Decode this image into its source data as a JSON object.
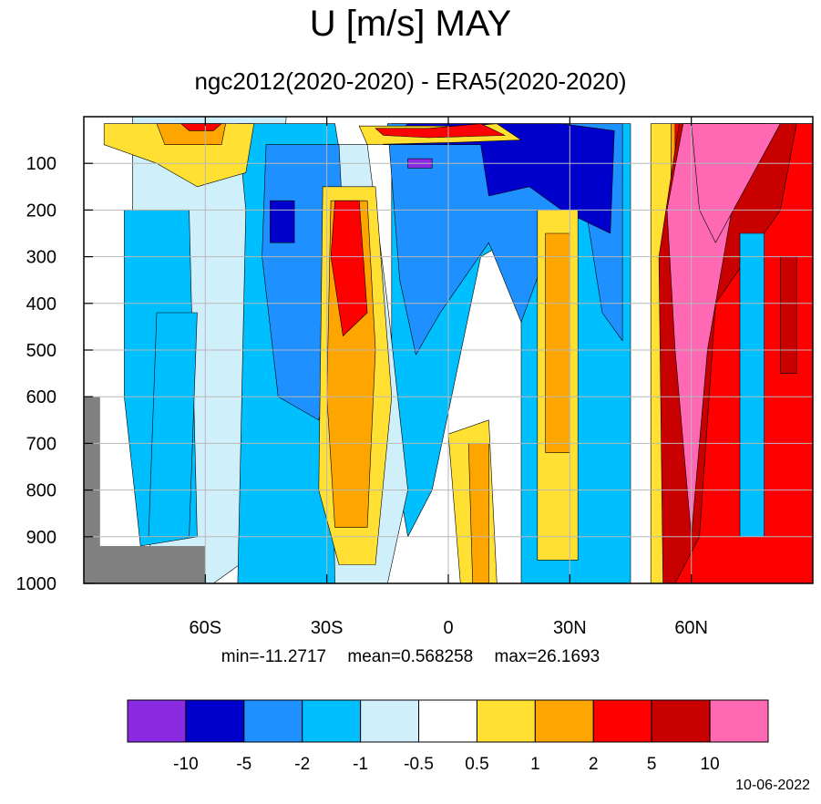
{
  "header": {
    "title": "U [m/s] MAY",
    "subtitle": "ngc2012(2020-2020) - ERA5(2020-2020)"
  },
  "stats": {
    "min": "min=-11.2717",
    "mean": "mean=0.568258",
    "max": "max=26.1693"
  },
  "footer": {
    "date": "10-06-2022"
  },
  "chart_data": {
    "type": "heatmap",
    "title": "U [m/s] MAY",
    "subtitle": "ngc2012(2020-2020) - ERA5(2020-2020)",
    "x_axis": {
      "range": [
        -90,
        90
      ],
      "ticks": [
        -60,
        -30,
        0,
        30,
        60
      ],
      "tick_labels": [
        "60S",
        "30S",
        "0",
        "30N",
        "60N"
      ]
    },
    "y_axis": {
      "range": [
        0,
        1000
      ],
      "inverted": true,
      "ticks": [
        100,
        200,
        300,
        400,
        500,
        600,
        700,
        800,
        900,
        1000
      ],
      "tick_labels": [
        "100",
        "200",
        "300",
        "400",
        "500",
        "600",
        "700",
        "800",
        "900",
        "1000"
      ]
    },
    "grid": true,
    "colorbar": {
      "orientation": "horizontal",
      "levels": [
        -10,
        -5,
        -2,
        -1,
        -0.5,
        0.5,
        1,
        2,
        5,
        10
      ],
      "level_labels": [
        "-10",
        "-5",
        "-2",
        "-1",
        "-0.5",
        "0.5",
        "1",
        "2",
        "5",
        "10"
      ],
      "colors": [
        "#8a2be2",
        "#0000cd",
        "#1e90ff",
        "#00bfff",
        "#cfeffb",
        "#ffffff",
        "#ffe033",
        "#ffa500",
        "#ff0000",
        "#c80000",
        "#ff69b4"
      ]
    },
    "missing_color": "#808080",
    "stats": {
      "min": -11.2717,
      "mean": 0.568258,
      "max": 26.1693
    },
    "regions": [
      {
        "level": -0.5,
        "points": [
          [
            -78,
            0
          ],
          [
            -40,
            0
          ],
          [
            -42,
            200
          ],
          [
            -42,
            900
          ],
          [
            -58,
            1000
          ],
          [
            -72,
            1000
          ],
          [
            -78,
            700
          ]
        ]
      },
      {
        "level": -1,
        "points": [
          [
            -80,
            200
          ],
          [
            -64,
            200
          ],
          [
            -62,
            900
          ],
          [
            -76,
            920
          ],
          [
            -80,
            600
          ]
        ]
      },
      {
        "level": -1,
        "points": [
          [
            -72,
            420
          ],
          [
            -62,
            420
          ],
          [
            -64,
            900
          ],
          [
            -74,
            900
          ]
        ]
      },
      {
        "level": -1,
        "points": [
          [
            -52,
            15
          ],
          [
            -28,
            15
          ],
          [
            -20,
            450
          ],
          [
            -16,
            800
          ],
          [
            -25,
            1000
          ],
          [
            -52,
            1000
          ],
          [
            -50,
            200
          ]
        ]
      },
      {
        "level": -1,
        "points": [
          [
            -14,
            15
          ],
          [
            45,
            15
          ],
          [
            45,
            1000
          ],
          [
            18,
            1000
          ],
          [
            18,
            250
          ],
          [
            8,
            300
          ],
          [
            -4,
            800
          ],
          [
            -10,
            900
          ],
          [
            -14,
            700
          ]
        ]
      },
      {
        "level": -0.5,
        "points": [
          [
            -30,
            60
          ],
          [
            -20,
            60
          ],
          [
            -15,
            400
          ],
          [
            -10,
            800
          ],
          [
            -15,
            1000
          ],
          [
            -28,
            1000
          ]
        ]
      },
      {
        "level": -2,
        "points": [
          [
            -45,
            60
          ],
          [
            -27,
            60
          ],
          [
            -25,
            400
          ],
          [
            -32,
            650
          ],
          [
            -42,
            600
          ],
          [
            -46,
            300
          ]
        ]
      },
      {
        "level": -5,
        "points": [
          [
            -44,
            180
          ],
          [
            -38,
            180
          ],
          [
            -38,
            270
          ],
          [
            -44,
            270
          ]
        ]
      },
      {
        "level": -2,
        "points": [
          [
            -15,
            15
          ],
          [
            43,
            15
          ],
          [
            43,
            480
          ],
          [
            38,
            420
          ],
          [
            34,
            200
          ],
          [
            26,
            250
          ],
          [
            18,
            440
          ],
          [
            10,
            270
          ],
          [
            -2,
            420
          ],
          [
            -8,
            510
          ],
          [
            -12,
            350
          ]
        ]
      },
      {
        "level": -5,
        "points": [
          [
            -16,
            60
          ],
          [
            8,
            60
          ],
          [
            10,
            170
          ],
          [
            20,
            150
          ],
          [
            28,
            200
          ],
          [
            40,
            250
          ],
          [
            41,
            30
          ],
          [
            28,
            15
          ],
          [
            -10,
            15
          ]
        ]
      },
      {
        "level": -10,
        "points": [
          [
            -10,
            90
          ],
          [
            -4,
            90
          ],
          [
            -4,
            110
          ],
          [
            -10,
            110
          ]
        ]
      },
      {
        "level": 0.5,
        "points": [
          [
            -85,
            15
          ],
          [
            -48,
            15
          ],
          [
            -50,
            120
          ],
          [
            -62,
            150
          ],
          [
            -72,
            100
          ],
          [
            -85,
            60
          ]
        ]
      },
      {
        "level": 1,
        "points": [
          [
            -72,
            15
          ],
          [
            -55,
            15
          ],
          [
            -56,
            60
          ],
          [
            -70,
            60
          ]
        ]
      },
      {
        "level": 2,
        "points": [
          [
            -66,
            15
          ],
          [
            -56,
            15
          ],
          [
            -58,
            30
          ],
          [
            -64,
            30
          ]
        ]
      },
      {
        "level": 0.5,
        "points": [
          [
            -31,
            150
          ],
          [
            -18,
            150
          ],
          [
            -14,
            600
          ],
          [
            -18,
            960
          ],
          [
            -27,
            960
          ],
          [
            -32,
            800
          ]
        ]
      },
      {
        "level": 1,
        "points": [
          [
            -29,
            180
          ],
          [
            -20,
            180
          ],
          [
            -18,
            500
          ],
          [
            -20,
            880
          ],
          [
            -28,
            880
          ],
          [
            -30,
            600
          ]
        ]
      },
      {
        "level": 2,
        "points": [
          [
            -28,
            180
          ],
          [
            -22,
            180
          ],
          [
            -20,
            420
          ],
          [
            -26,
            470
          ],
          [
            -29,
            300
          ]
        ]
      },
      {
        "level": 0.5,
        "points": [
          [
            -22,
            20
          ],
          [
            5,
            20
          ],
          [
            12,
            15
          ],
          [
            18,
            50
          ],
          [
            2,
            55
          ],
          [
            -20,
            60
          ]
        ]
      },
      {
        "level": 2,
        "points": [
          [
            -18,
            25
          ],
          [
            -5,
            25
          ],
          [
            8,
            15
          ],
          [
            14,
            40
          ],
          [
            -5,
            45
          ],
          [
            -16,
            40
          ]
        ]
      },
      {
        "level": 0.5,
        "points": [
          [
            0,
            680
          ],
          [
            10,
            650
          ],
          [
            12,
            1000
          ],
          [
            3,
            1000
          ]
        ]
      },
      {
        "level": 1,
        "points": [
          [
            5,
            700
          ],
          [
            10,
            700
          ],
          [
            10,
            1000
          ],
          [
            6,
            1000
          ]
        ]
      },
      {
        "level": 0.5,
        "points": [
          [
            22,
            200
          ],
          [
            32,
            200
          ],
          [
            32,
            950
          ],
          [
            22,
            950
          ]
        ]
      },
      {
        "level": 1,
        "points": [
          [
            24,
            250
          ],
          [
            30,
            250
          ],
          [
            30,
            720
          ],
          [
            24,
            720
          ]
        ]
      },
      {
        "level": 0.5,
        "points": [
          [
            50,
            15
          ],
          [
            90,
            15
          ],
          [
            90,
            1000
          ],
          [
            50,
            1000
          ]
        ]
      },
      {
        "level": 1,
        "points": [
          [
            55,
            15
          ],
          [
            90,
            15
          ],
          [
            90,
            1000
          ],
          [
            55,
            1000
          ]
        ]
      },
      {
        "level": 2,
        "points": [
          [
            56,
            15
          ],
          [
            90,
            15
          ],
          [
            90,
            1000
          ],
          [
            56,
            1000
          ]
        ]
      },
      {
        "level": 5,
        "points": [
          [
            57,
            15
          ],
          [
            86,
            15
          ],
          [
            82,
            200
          ],
          [
            66,
            400
          ],
          [
            62,
            900
          ],
          [
            56,
            1000
          ],
          [
            53,
            1000
          ],
          [
            52,
            300
          ]
        ]
      },
      {
        "level": 10,
        "points": [
          [
            58,
            15
          ],
          [
            78,
            15
          ],
          [
            70,
            200
          ],
          [
            64,
            500
          ],
          [
            60,
            900
          ],
          [
            56,
            500
          ],
          [
            54,
            200
          ]
        ]
      },
      {
        "level": 15,
        "points": [
          [
            60,
            15
          ],
          [
            82,
            15
          ],
          [
            66,
            270
          ],
          [
            62,
            200
          ]
        ]
      },
      {
        "level": -1,
        "points": [
          [
            72,
            250
          ],
          [
            78,
            250
          ],
          [
            78,
            900
          ],
          [
            72,
            900
          ]
        ]
      },
      {
        "level": 5,
        "points": [
          [
            82,
            300
          ],
          [
            86,
            300
          ],
          [
            86,
            550
          ],
          [
            82,
            550
          ]
        ]
      }
    ],
    "missing_regions": [
      {
        "points": [
          [
            -90,
            600
          ],
          [
            -86,
            600
          ],
          [
            -86,
            920
          ],
          [
            -60,
            920
          ],
          [
            -60,
            1000
          ],
          [
            -90,
            1000
          ]
        ]
      }
    ]
  }
}
